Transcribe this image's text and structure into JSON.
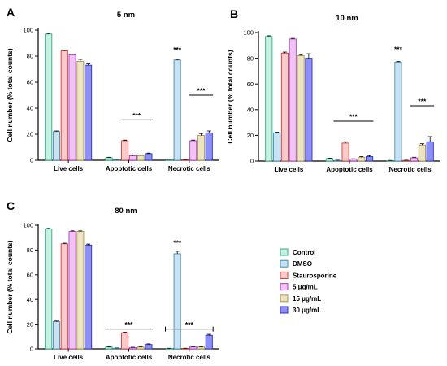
{
  "legend": {
    "items": [
      {
        "label": "Control",
        "fill": "#c6f0e1",
        "stroke": "#2fae83"
      },
      {
        "label": "DMSO",
        "fill": "#c7e3f3",
        "stroke": "#4a8ab8"
      },
      {
        "label": "Staurosporine",
        "fill": "#f8cbcb",
        "stroke": "#d23a3a"
      },
      {
        "label": "5 μg/mL",
        "fill": "#f1c3f4",
        "stroke": "#b03cc2"
      },
      {
        "label": "15 μg/mL",
        "fill": "#ece3c2",
        "stroke": "#a89452"
      },
      {
        "label": "30 μg/mL",
        "fill": "#8e8ff2",
        "stroke": "#2c32c8"
      }
    ]
  },
  "chart_data": [
    {
      "type": "bar",
      "panel": "A",
      "title": "5 nm",
      "ylabel": "Cell number (% total counts)",
      "ylim": [
        0,
        100
      ],
      "yticks": [
        0,
        20,
        40,
        60,
        80,
        100
      ],
      "categories": [
        "Live cells",
        "Apoptotic cells",
        "Necrotic cells"
      ],
      "series": [
        {
          "name": "Control",
          "values": [
            97,
            2,
            0.5
          ],
          "errors": [
            0.5,
            0.3,
            0.2
          ]
        },
        {
          "name": "DMSO",
          "values": [
            22,
            0.5,
            77
          ],
          "errors": [
            0.5,
            0.2,
            0.5
          ]
        },
        {
          "name": "Staurosporine",
          "values": [
            84,
            15,
            0.3
          ],
          "errors": [
            0.5,
            0.5,
            0.2
          ]
        },
        {
          "name": "5 μg/mL",
          "values": [
            81,
            3.5,
            15
          ],
          "errors": [
            0.5,
            0.4,
            0.5
          ]
        },
        {
          "name": "15 μg/mL",
          "values": [
            76,
            3.5,
            19
          ],
          "errors": [
            1.5,
            0.5,
            1.5
          ]
        },
        {
          "name": "30 μg/mL",
          "values": [
            73,
            5,
            21
          ],
          "errors": [
            1.0,
            0.5,
            1.5
          ]
        }
      ],
      "annotations": [
        {
          "text": "***",
          "category": 1,
          "y": 31,
          "bracket": true,
          "from_series": 2,
          "to_series": 5
        },
        {
          "text": "***",
          "category": 2,
          "y": 83,
          "bracket": false,
          "series": 1
        },
        {
          "text": "***",
          "category": 2,
          "y": 50,
          "bracket": true,
          "from_series": 3,
          "to_series": 5
        }
      ]
    },
    {
      "type": "bar",
      "panel": "B",
      "title": "10 nm",
      "ylabel": "Cell number (% total counts)",
      "ylim": [
        0,
        100
      ],
      "yticks": [
        0,
        20,
        40,
        60,
        80,
        100
      ],
      "categories": [
        "Live cells",
        "Apoptotic cells",
        "Necrotic cells"
      ],
      "series": [
        {
          "name": "Control",
          "values": [
            97,
            2,
            0.3
          ],
          "errors": [
            0.5,
            0.3,
            0.2
          ]
        },
        {
          "name": "DMSO",
          "values": [
            22,
            0.5,
            77
          ],
          "errors": [
            0.5,
            0.2,
            0.5
          ]
        },
        {
          "name": "Staurosporine",
          "values": [
            84,
            14,
            0.5
          ],
          "errors": [
            0.8,
            1.0,
            0.2
          ]
        },
        {
          "name": "5 μg/mL",
          "values": [
            95,
            1.5,
            2.5
          ],
          "errors": [
            0.5,
            0.3,
            0.5
          ]
        },
        {
          "name": "15 μg/mL",
          "values": [
            82,
            3,
            12.5
          ],
          "errors": [
            0.8,
            0.5,
            1.0
          ]
        },
        {
          "name": "30 μg/mL",
          "values": [
            80,
            3.5,
            15
          ],
          "errors": [
            3.5,
            0.8,
            4.0
          ]
        }
      ],
      "annotations": [
        {
          "text": "***",
          "category": 1,
          "y": 31,
          "bracket": true,
          "from_series": 1,
          "to_series": 5
        },
        {
          "text": "***",
          "category": 2,
          "y": 85,
          "bracket": false,
          "series": 1
        },
        {
          "text": "***",
          "category": 2,
          "y": 43,
          "bracket": true,
          "from_series": 3,
          "to_series": 5
        }
      ]
    },
    {
      "type": "bar",
      "panel": "C",
      "title": "80 nm",
      "ylabel": "Cell number (% total counts)",
      "ylim": [
        0,
        100
      ],
      "yticks": [
        0,
        20,
        40,
        60,
        80,
        100
      ],
      "categories": [
        "Live cells",
        "Apoptotic cells",
        "Necrotic cells"
      ],
      "series": [
        {
          "name": "Control",
          "values": [
            97,
            1.5,
            0.3
          ],
          "errors": [
            0.5,
            0.3,
            0.2
          ]
        },
        {
          "name": "DMSO",
          "values": [
            22,
            0.5,
            77
          ],
          "errors": [
            0.5,
            0.2,
            2.0
          ]
        },
        {
          "name": "Staurosporine",
          "values": [
            85,
            13,
            0.3
          ],
          "errors": [
            0.5,
            0.5,
            0.2
          ]
        },
        {
          "name": "5 μg/mL",
          "values": [
            95,
            1.0,
            1.5
          ],
          "errors": [
            0.5,
            0.3,
            0.3
          ]
        },
        {
          "name": "15 μg/mL",
          "values": [
            95,
            1.5,
            1.5
          ],
          "errors": [
            0.5,
            0.3,
            0.3
          ]
        },
        {
          "name": "30 μg/mL",
          "values": [
            84,
            3.5,
            11
          ],
          "errors": [
            0.8,
            0.5,
            0.8
          ]
        }
      ],
      "annotations": [
        {
          "text": "***",
          "category": 1,
          "y": 16,
          "bracket": true,
          "from_series": 0,
          "to_series": 5
        },
        {
          "text": "***",
          "category": 2,
          "y": 84,
          "bracket": false,
          "series": 1
        },
        {
          "text": "***",
          "category": 2,
          "y": 16,
          "bracket": true,
          "from_series": 0,
          "to_series": 5,
          "capped": true
        }
      ]
    }
  ]
}
